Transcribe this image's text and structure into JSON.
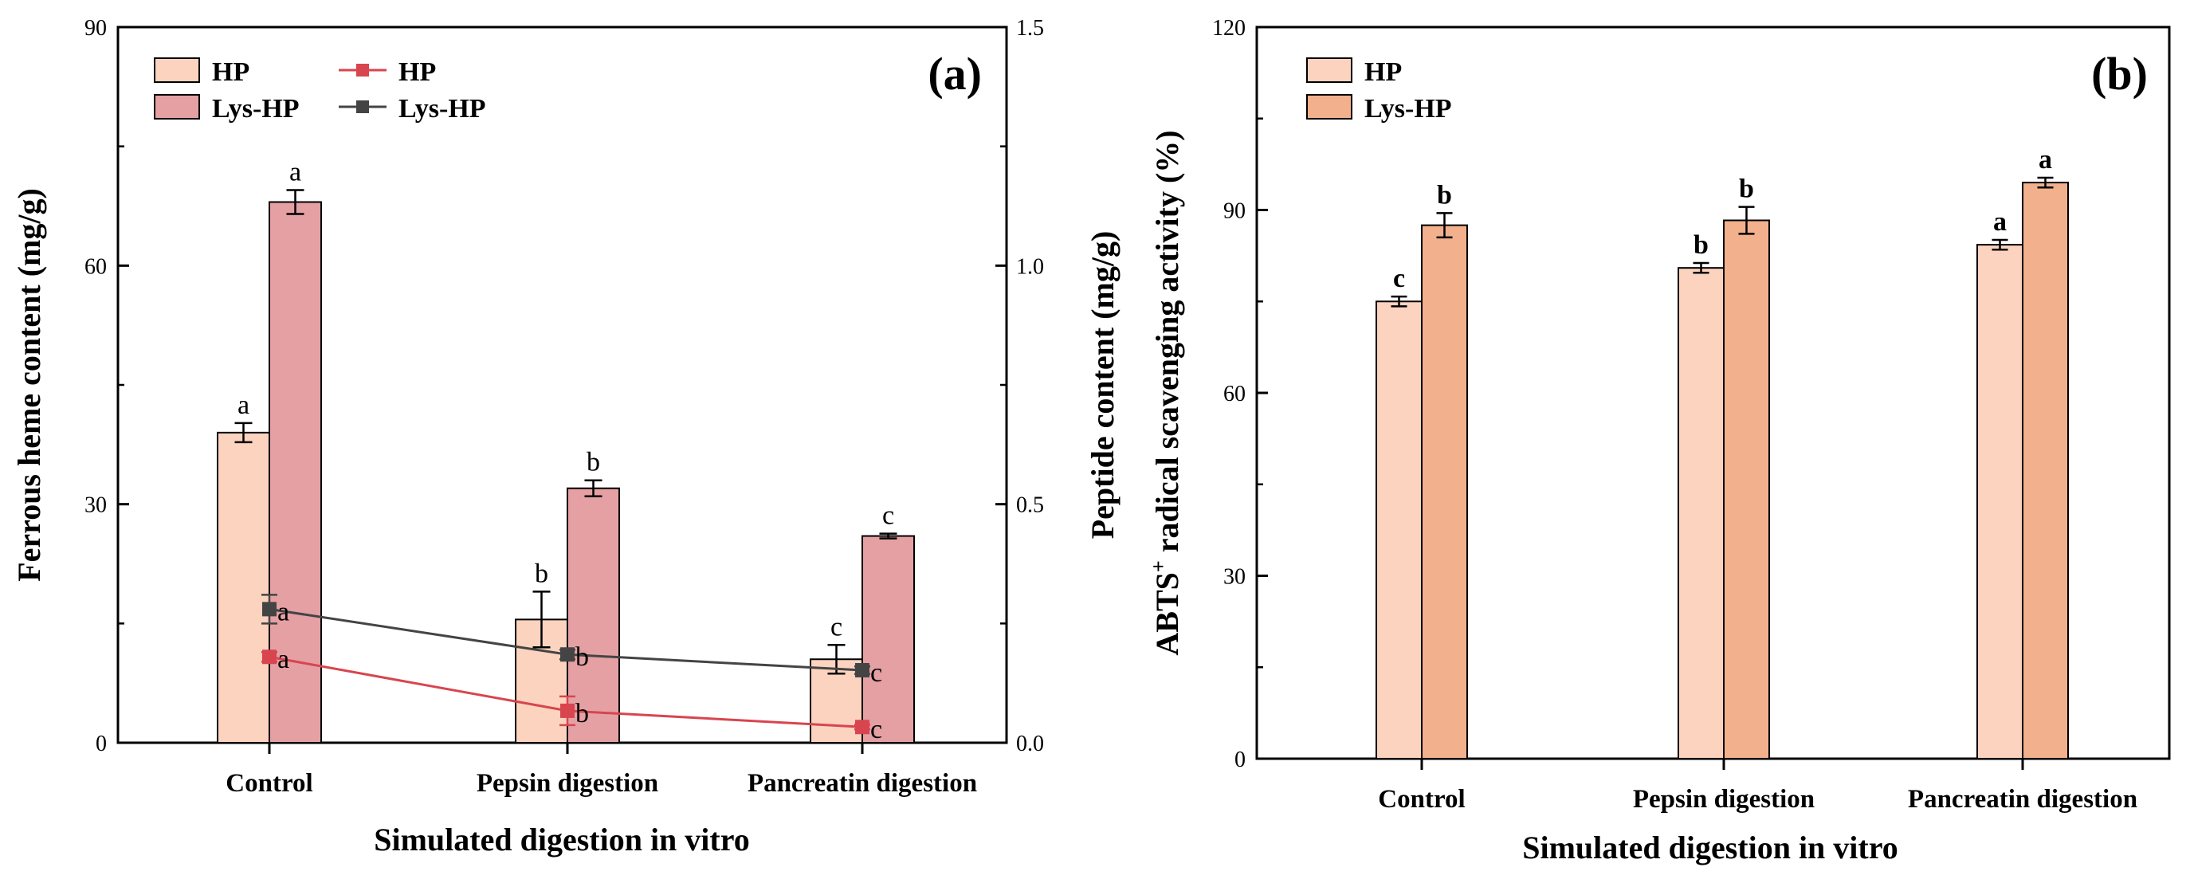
{
  "chart_data": [
    {
      "panel": "(a)",
      "type": "bar+line",
      "categories": [
        "Control",
        "Pepsin digestion",
        "Pancreatin digestion"
      ],
      "xlabel": "Simulated digestion in vitro",
      "ylabel_left": "Ferrous heme content (mg/g)",
      "ylabel_right": "Peptide content (mg/g)",
      "ylim_left": [
        0,
        90
      ],
      "yticks_left": [
        "0",
        "30",
        "60",
        "90"
      ],
      "ylim_right": [
        0,
        1.5
      ],
      "yticks_right": [
        "0.0",
        "0.5",
        "1.0",
        "1.5"
      ],
      "bar_series": [
        {
          "name": "HP",
          "color": "#FBD3BF",
          "values": [
            39,
            15.5,
            10.5
          ],
          "errors": [
            1.2,
            3.5,
            1.8
          ],
          "labels": [
            "a",
            "b",
            "c"
          ]
        },
        {
          "name": "Lys-HP",
          "color": "#E5A0A4",
          "values": [
            68,
            32,
            26
          ],
          "errors": [
            1.5,
            1.0,
            0.3
          ],
          "labels": [
            "a",
            "b",
            "c"
          ]
        }
      ],
      "line_series": [
        {
          "name": "HP",
          "color": "#D8454F",
          "values": [
            0.18,
            0.067,
            0.033
          ],
          "errors": [
            0.01,
            0.03,
            0.005
          ],
          "labels": [
            "a",
            "b",
            "c"
          ]
        },
        {
          "name": "Lys-HP",
          "color": "#444444",
          "values": [
            0.28,
            0.185,
            0.152
          ],
          "errors": [
            0.03,
            0.01,
            0.008
          ],
          "labels": [
            "a",
            "b",
            "c"
          ]
        }
      ]
    },
    {
      "panel": "(b)",
      "type": "bar",
      "categories": [
        "Control",
        "Pepsin digestion",
        "Pancreatin digestion"
      ],
      "xlabel": "Simulated digestion in vitro",
      "ylabel": "ABTS",
      "ylabel_sup": "+",
      "ylabel_rest": " radical scavenging activity (%)",
      "ylim": [
        0,
        120
      ],
      "yticks": [
        "0",
        "30",
        "60",
        "90",
        "120"
      ],
      "series": [
        {
          "name": "HP",
          "color": "#FBD3BF",
          "values": [
            75,
            80.5,
            84.3
          ],
          "errors": [
            0.8,
            0.8,
            0.8
          ],
          "labels": [
            "c",
            "b",
            "a"
          ]
        },
        {
          "name": "Lys-HP",
          "color": "#F2B08D",
          "values": [
            87.5,
            88.3,
            94.5
          ],
          "errors": [
            2.0,
            2.2,
            0.8
          ],
          "labels": [
            "b",
            "b",
            "a"
          ]
        }
      ]
    }
  ]
}
